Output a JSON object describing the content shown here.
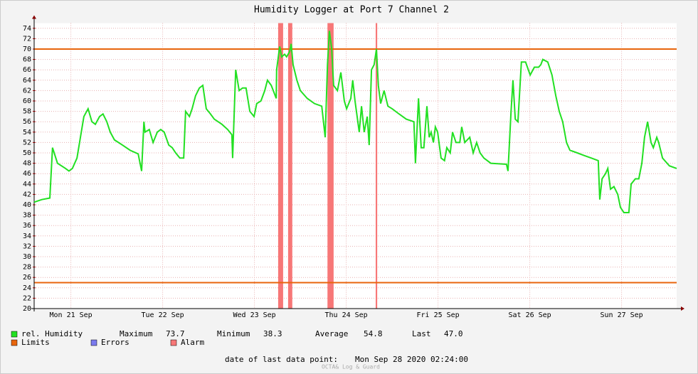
{
  "chart_data": {
    "type": "line",
    "title": "Humidity Logger at Port 7 Channel 2",
    "xlim": [
      0,
      168
    ],
    "xticks": [
      {
        "value": 9.6,
        "label": "Mon 21 Sep"
      },
      {
        "value": 33.6,
        "label": "Tue 22 Sep"
      },
      {
        "value": 57.6,
        "label": "Wed 23 Sep"
      },
      {
        "value": 81.6,
        "label": "Thu 24 Sep"
      },
      {
        "value": 105.6,
        "label": "Fri 25 Sep"
      },
      {
        "value": 129.6,
        "label": "Sat 26 Sep"
      },
      {
        "value": 153.6,
        "label": "Sun 27 Sep"
      }
    ],
    "ylim": [
      20,
      75
    ],
    "yticks": [
      20,
      22,
      24,
      26,
      28,
      30,
      32,
      34,
      36,
      38,
      40,
      42,
      44,
      46,
      48,
      50,
      52,
      54,
      56,
      58,
      60,
      62,
      64,
      66,
      68,
      70,
      72,
      74
    ],
    "grid": true,
    "series": [
      {
        "name": "rel. Humidity",
        "color": "#22e022",
        "x": [
          0,
          2.0,
          4.1,
          4.8,
          6.1,
          8.2,
          9.1,
          10.0,
          11.2,
          12.1,
          13.0,
          14.1,
          15.1,
          16.0,
          17.1,
          18.0,
          19.0,
          19.9,
          21.0,
          23.1,
          25.1,
          27.2,
          28.1,
          28.7,
          29.0,
          30.1,
          31.1,
          32.2,
          33.1,
          34.0,
          35.2,
          36.1,
          37.0,
          38.1,
          39.1,
          39.6,
          40.6,
          41.3,
          42.2,
          43.2,
          44.1,
          45.0,
          46.1,
          47.1,
          49.1,
          50.6,
          51.7,
          51.9,
          52.7,
          53.6,
          54.5,
          55.4,
          56.4,
          57.5,
          58.2,
          59.3,
          60.3,
          61.0,
          62.0,
          63.3,
          63.4,
          64.2,
          64.7,
          65.5,
          66.0,
          66.8,
          67.2,
          67.7,
          68.7,
          69.6,
          71.4,
          73.3,
          75.2,
          76.1,
          76.7,
          77.2,
          77.8,
          78.3,
          79.3,
          80.2,
          81.1,
          81.7,
          82.8,
          83.3,
          83.9,
          85.0,
          85.6,
          86.3,
          87.1,
          87.6,
          88.2,
          88.9,
          89.5,
          90.0,
          90.6,
          91.5,
          92.5,
          93.6,
          95.4,
          97.3,
          99.3,
          99.7,
          100.5,
          101.2,
          101.9,
          102.7,
          103.3,
          103.8,
          104.4,
          104.9,
          105.5,
          106.4,
          107.3,
          107.9,
          108.8,
          109.4,
          110.3,
          111.3,
          111.8,
          112.6,
          113.9,
          114.8,
          115.7,
          116.6,
          117.6,
          119.4,
          123.5,
          123.9,
          124.7,
          125.2,
          125.8,
          126.5,
          127.4,
          128.5,
          129.7,
          130.8,
          131.9,
          132.5,
          133.0,
          134.3,
          135.4,
          136.4,
          137.3,
          138.2,
          139.2,
          140.1,
          142.0,
          143.8,
          145.7,
          147.5,
          147.9,
          148.5,
          149.4,
          150.0,
          150.7,
          151.6,
          152.6,
          153.3,
          154.2,
          155.5,
          156.1,
          157.2,
          158.1,
          158.9,
          159.6,
          160.4,
          161.3,
          161.9,
          162.8,
          163.3,
          164.3,
          166.1,
          168.0
        ],
        "values": [
          40.5,
          41,
          41.3,
          51,
          48,
          47,
          46.5,
          47,
          49,
          53,
          57,
          58.5,
          56,
          55.5,
          57,
          57.5,
          56,
          54,
          52.5,
          51.5,
          50.5,
          49.8,
          46.5,
          56,
          54,
          54.5,
          52,
          54,
          54.5,
          54,
          51.5,
          51,
          50,
          49,
          49,
          58,
          57,
          58.5,
          61,
          62.5,
          63,
          58.5,
          57.5,
          56.5,
          55.5,
          54.5,
          53.5,
          49,
          66,
          62,
          62.5,
          62.5,
          58,
          57,
          59.5,
          60,
          62,
          64,
          63,
          60.5,
          66,
          70.5,
          68.5,
          69,
          68.5,
          69.5,
          71,
          67,
          64,
          62,
          60.5,
          59.5,
          59,
          53,
          67,
          73.5,
          70,
          63,
          62,
          65.5,
          60,
          58.5,
          60.5,
          64,
          60,
          54,
          59,
          54,
          57,
          51.5,
          66,
          67,
          70,
          63,
          59.5,
          62,
          59,
          58.5,
          57.5,
          56.5,
          56,
          48,
          60.5,
          51,
          51,
          59,
          53,
          54,
          52,
          55,
          54,
          49,
          48.5,
          51,
          50,
          54,
          52,
          52,
          55,
          52,
          53,
          50,
          52,
          50,
          49,
          48,
          47.8,
          46.5,
          58,
          64,
          56.5,
          56,
          67.5,
          67.5,
          65,
          66.5,
          66.5,
          67,
          68,
          67.5,
          65,
          61,
          58,
          56,
          52,
          50.5,
          50,
          49.5,
          49,
          48.5,
          41,
          45,
          46,
          47,
          43,
          43.5,
          42,
          39.5,
          38.5,
          38.5,
          44,
          45,
          45,
          48,
          53,
          56,
          52,
          51,
          53,
          52,
          49,
          47.5,
          47
        ]
      }
    ],
    "limits": {
      "name": "Limits",
      "color": "#e8650c",
      "values": [
        70,
        25
      ]
    },
    "errors": {
      "name": "Errors",
      "color": "#7a7aee"
    },
    "alarms": {
      "name": "Alarm",
      "color": "#f77777",
      "periods": [
        [
          63.8,
          65.1
        ],
        [
          66.4,
          67.5
        ],
        [
          76.7,
          78.3
        ],
        [
          89.3,
          89.7
        ]
      ]
    },
    "stats": [
      {
        "name": "Maximum",
        "value": 73.7
      },
      {
        "name": "Minimum",
        "value": 38.3
      },
      {
        "name": "Average",
        "value": 54.8
      },
      {
        "name": "Last",
        "value": 47,
        "value_label": "47.0"
      }
    ],
    "footer_label": "date of last data point:",
    "footer_value": "Mon Sep 28 2020 02:24:00",
    "watermark": "OCTA& Log & Guard"
  }
}
